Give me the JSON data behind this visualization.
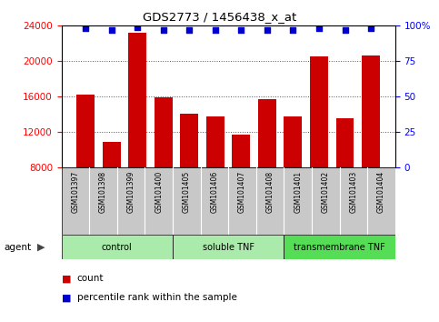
{
  "title": "GDS2773 / 1456438_x_at",
  "samples": [
    "GSM101397",
    "GSM101398",
    "GSM101399",
    "GSM101400",
    "GSM101405",
    "GSM101406",
    "GSM101407",
    "GSM101408",
    "GSM101401",
    "GSM101402",
    "GSM101403",
    "GSM101404"
  ],
  "counts": [
    16200,
    10900,
    23200,
    15900,
    14100,
    13800,
    11700,
    15700,
    13800,
    20500,
    13600,
    20600
  ],
  "percentile_ranks": [
    98,
    97,
    99,
    97,
    97,
    97,
    97,
    97,
    97,
    98,
    97,
    98
  ],
  "groups": [
    {
      "label": "control",
      "start": 0,
      "end": 4
    },
    {
      "label": "soluble TNF",
      "start": 4,
      "end": 8
    },
    {
      "label": "transmembrane TNF",
      "start": 8,
      "end": 12
    }
  ],
  "group_colors": [
    "#aaeaaa",
    "#aaeaaa",
    "#55dd55"
  ],
  "bar_color": "#CC0000",
  "dot_color": "#0000CC",
  "ylim_left": [
    8000,
    24000
  ],
  "yticks_left": [
    8000,
    12000,
    16000,
    20000,
    24000
  ],
  "ylim_right": [
    0,
    100
  ],
  "yticks_right": [
    0,
    25,
    50,
    75,
    100
  ],
  "yticklabels_right": [
    "0",
    "25",
    "50",
    "75",
    "100%"
  ],
  "sample_bg_color": "#c8c8c8",
  "legend_count_color": "#CC0000",
  "legend_dot_color": "#0000CC"
}
